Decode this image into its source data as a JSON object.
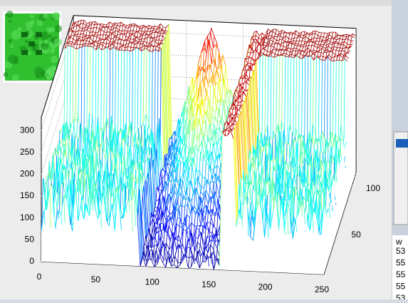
{
  "z_axis": {
    "ticks": [
      0,
      50,
      100,
      150,
      200,
      250,
      300
    ]
  },
  "x_axis": {
    "ticks": [
      0,
      50,
      100,
      150,
      200,
      250
    ]
  },
  "y_axis": {
    "ticks": [
      50,
      100
    ]
  },
  "side_panel": {
    "header": "w",
    "values": [
      "53",
      "55",
      "55",
      "55",
      "53"
    ]
  }
}
